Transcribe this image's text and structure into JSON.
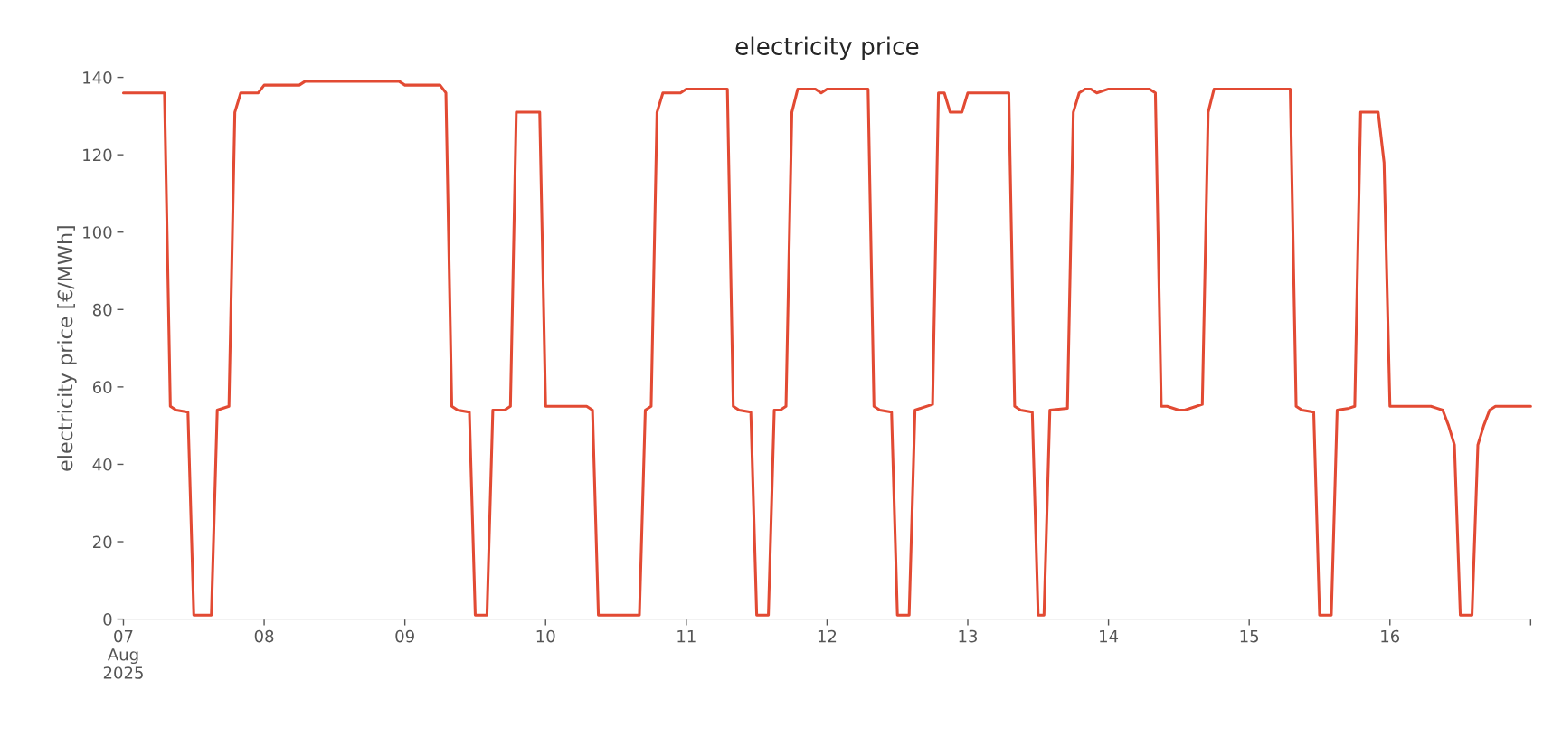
{
  "chart_data": {
    "type": "line",
    "title": "electricity price",
    "ylabel": "electricity price [€/MWh]",
    "x": [
      "2025-08-07T00:00",
      "2025-08-07T07:00",
      "2025-08-07T08:00",
      "2025-08-07T09:00",
      "2025-08-07T11:00",
      "2025-08-07T12:00",
      "2025-08-07T15:00",
      "2025-08-07T16:00",
      "2025-08-07T18:00",
      "2025-08-07T19:00",
      "2025-08-07T20:00",
      "2025-08-07T23:00",
      "2025-08-08T00:00",
      "2025-08-08T06:00",
      "2025-08-08T07:00",
      "2025-08-08T23:00",
      "2025-08-09T00:00",
      "2025-08-09T06:00",
      "2025-08-09T07:00",
      "2025-08-09T08:00",
      "2025-08-09T09:00",
      "2025-08-09T11:00",
      "2025-08-09T12:00",
      "2025-08-09T14:00",
      "2025-08-09T15:00",
      "2025-08-09T17:00",
      "2025-08-09T18:00",
      "2025-08-09T19:00",
      "2025-08-09T23:00",
      "2025-08-10T00:00",
      "2025-08-10T07:00",
      "2025-08-10T08:00",
      "2025-08-10T09:00",
      "2025-08-10T16:00",
      "2025-08-10T17:00",
      "2025-08-10T18:00",
      "2025-08-10T19:00",
      "2025-08-10T20:00",
      "2025-08-10T23:00",
      "2025-08-11T00:00",
      "2025-08-11T07:00",
      "2025-08-11T08:00",
      "2025-08-11T09:00",
      "2025-08-11T11:00",
      "2025-08-11T12:00",
      "2025-08-11T14:00",
      "2025-08-11T15:00",
      "2025-08-11T16:00",
      "2025-08-11T17:00",
      "2025-08-11T18:00",
      "2025-08-11T19:00",
      "2025-08-11T22:00",
      "2025-08-11T23:00",
      "2025-08-12T00:00",
      "2025-08-12T07:00",
      "2025-08-12T08:00",
      "2025-08-12T09:00",
      "2025-08-12T11:00",
      "2025-08-12T12:00",
      "2025-08-12T14:00",
      "2025-08-12T15:00",
      "2025-08-12T18:00",
      "2025-08-12T19:00",
      "2025-08-12T20:00",
      "2025-08-12T21:00",
      "2025-08-12T23:00",
      "2025-08-13T00:00",
      "2025-08-13T07:00",
      "2025-08-13T08:00",
      "2025-08-13T09:00",
      "2025-08-13T11:00",
      "2025-08-13T12:00",
      "2025-08-13T13:00",
      "2025-08-13T14:00",
      "2025-08-13T17:00",
      "2025-08-13T18:00",
      "2025-08-13T19:00",
      "2025-08-13T20:00",
      "2025-08-13T21:00",
      "2025-08-13T22:00",
      "2025-08-14T00:00",
      "2025-08-14T07:00",
      "2025-08-14T08:00",
      "2025-08-14T09:00",
      "2025-08-14T10:00",
      "2025-08-14T12:00",
      "2025-08-14T13:00",
      "2025-08-14T15:00",
      "2025-08-14T16:00",
      "2025-08-14T17:00",
      "2025-08-14T18:00",
      "2025-08-15T07:00",
      "2025-08-15T08:00",
      "2025-08-15T09:00",
      "2025-08-15T11:00",
      "2025-08-15T12:00",
      "2025-08-15T14:00",
      "2025-08-15T15:00",
      "2025-08-15T17:00",
      "2025-08-15T18:00",
      "2025-08-15T19:00",
      "2025-08-15T22:00",
      "2025-08-15T23:00",
      "2025-08-16T00:00",
      "2025-08-16T07:00",
      "2025-08-16T08:00",
      "2025-08-16T09:00",
      "2025-08-16T10:00",
      "2025-08-16T11:00",
      "2025-08-16T12:00",
      "2025-08-16T14:00",
      "2025-08-16T15:00",
      "2025-08-16T16:00",
      "2025-08-16T17:00",
      "2025-08-16T18:00",
      "2025-08-17T00:00"
    ],
    "series": [
      {
        "color": "#e24a33",
        "values": [
          136,
          136,
          55,
          54,
          53.5,
          1,
          1,
          54,
          55,
          131,
          136,
          136,
          138,
          138,
          139,
          139,
          138,
          138,
          136,
          55,
          54,
          53.5,
          1,
          1,
          54,
          54,
          55,
          131,
          131,
          55,
          55,
          54,
          1,
          1,
          54,
          55,
          131,
          136,
          136,
          137,
          137,
          55,
          54,
          53.5,
          1,
          1,
          54,
          54,
          55,
          131,
          137,
          137,
          136,
          137,
          137,
          55,
          54,
          53.5,
          1,
          1,
          54,
          55.5,
          136,
          136,
          131,
          131,
          136,
          136,
          55,
          54,
          53.5,
          1,
          1,
          54,
          54.5,
          131,
          136,
          137,
          137,
          136,
          137,
          137,
          136,
          55,
          55,
          54,
          54,
          55,
          55.5,
          131,
          137,
          137,
          55,
          54,
          53.5,
          1,
          1,
          54,
          54.5,
          55,
          131,
          131,
          118,
          55,
          55,
          54.5,
          54,
          50,
          45,
          1,
          1,
          45,
          50,
          54,
          55,
          55
        ]
      }
    ],
    "xticks": [
      {
        "value": "2025-08-07",
        "label": "07\nAug\n2025"
      },
      {
        "value": "2025-08-08",
        "label": "08"
      },
      {
        "value": "2025-08-09",
        "label": "09"
      },
      {
        "value": "2025-08-10",
        "label": "10"
      },
      {
        "value": "2025-08-11",
        "label": "11"
      },
      {
        "value": "2025-08-12",
        "label": "12"
      },
      {
        "value": "2025-08-13",
        "label": "13"
      },
      {
        "value": "2025-08-14",
        "label": "14"
      },
      {
        "value": "2025-08-15",
        "label": "15"
      },
      {
        "value": "2025-08-16",
        "label": "16"
      },
      {
        "value": "2025-08-17",
        "label": null
      }
    ],
    "xlim": [
      "2025-08-07T00:00",
      "2025-08-17T00:00"
    ],
    "ylim": [
      0,
      140
    ],
    "yticks": [
      0,
      20,
      40,
      60,
      80,
      100,
      120,
      140
    ],
    "grid": false,
    "legend": false
  }
}
